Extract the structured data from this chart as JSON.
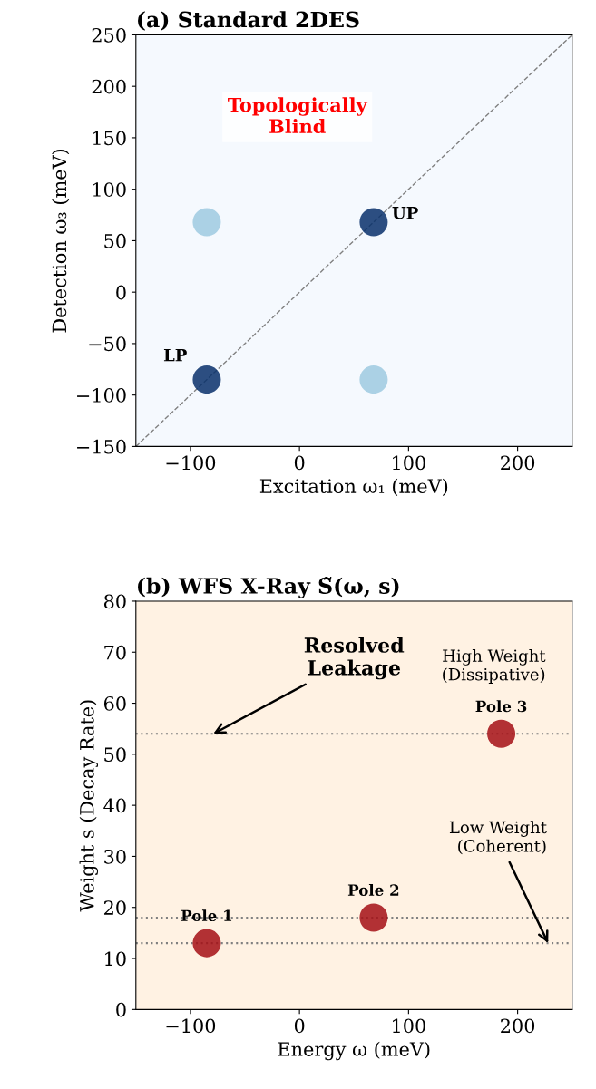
{
  "chart_data": [
    {
      "type": "scatter",
      "title": "(a) Standard 2DES",
      "xlabel": "Excitation ω₁ (meV)",
      "ylabel": "Detection ω₃ (meV)",
      "series": [
        {
          "type": "line",
          "color": "#808080",
          "line_style": "dashed",
          "marker": "none",
          "x": [
            -150,
            250
          ],
          "values": [
            -150,
            250
          ]
        },
        {
          "color": "#08306b",
          "x": [
            -85,
            68
          ],
          "values": [
            -85,
            68
          ]
        },
        {
          "color": "#9ecae1",
          "x": [
            -85,
            68
          ],
          "values": [
            68,
            -85
          ]
        }
      ],
      "marker": "circle",
      "xlim": [
        -150,
        250
      ],
      "ylim": [
        -150,
        250
      ],
      "xticks": [
        {
          "value": -100,
          "label": "−100"
        },
        0,
        100,
        200
      ],
      "yticks": [
        {
          "value": -150,
          "label": "−150"
        },
        {
          "value": -100,
          "label": "−100"
        },
        {
          "value": -50,
          "label": "−50"
        },
        0,
        50,
        100,
        150,
        200,
        250
      ],
      "annotations": [
        {
          "text": "LP",
          "x": -85,
          "y": -85
        },
        {
          "text": "UP",
          "x": 68,
          "y": 68
        },
        "Topologically\nBlind"
      ],
      "grid": false,
      "legend": false
    },
    {
      "type": "scatter",
      "title": "(b) WFS X-Ray S̃(ω, s)",
      "xlabel": "Energy ω (meV)",
      "ylabel": "Weight s (Decay Rate)",
      "series": [
        {
          "color": "#a50f15",
          "x": [
            -85,
            68,
            185
          ],
          "values": [
            13,
            18,
            54
          ]
        }
      ],
      "marker": "circle",
      "xlim": [
        -150,
        250
      ],
      "ylim": [
        0,
        80
      ],
      "xticks": [
        {
          "value": -100,
          "label": "−100"
        },
        0,
        100,
        200
      ],
      "yticks": [
        0,
        10,
        20,
        30,
        40,
        50,
        60,
        70,
        80
      ],
      "ref_lines": [
        {
          "axis": "y",
          "value": 13,
          "color": "#808080",
          "line_style": "dotted"
        },
        {
          "axis": "y",
          "value": 18,
          "color": "#808080",
          "line_style": "dotted"
        },
        {
          "axis": "y",
          "value": 54,
          "color": "#808080",
          "line_style": "dotted"
        }
      ],
      "annotations": [
        {
          "text": "Pole 1",
          "x": -85,
          "y": 13
        },
        {
          "text": "Pole 2",
          "x": 68,
          "y": 18
        },
        {
          "text": "Pole 3",
          "x": 185,
          "y": 54
        },
        {
          "text": "Resolved\nLeakage",
          "x": -79,
          "y": 54
        },
        "High Weight\n(Dissipative)",
        {
          "text": "Low Weight\n(Coherent)",
          "x": 228,
          "y": 13
        }
      ],
      "grid": false,
      "legend": false
    }
  ]
}
